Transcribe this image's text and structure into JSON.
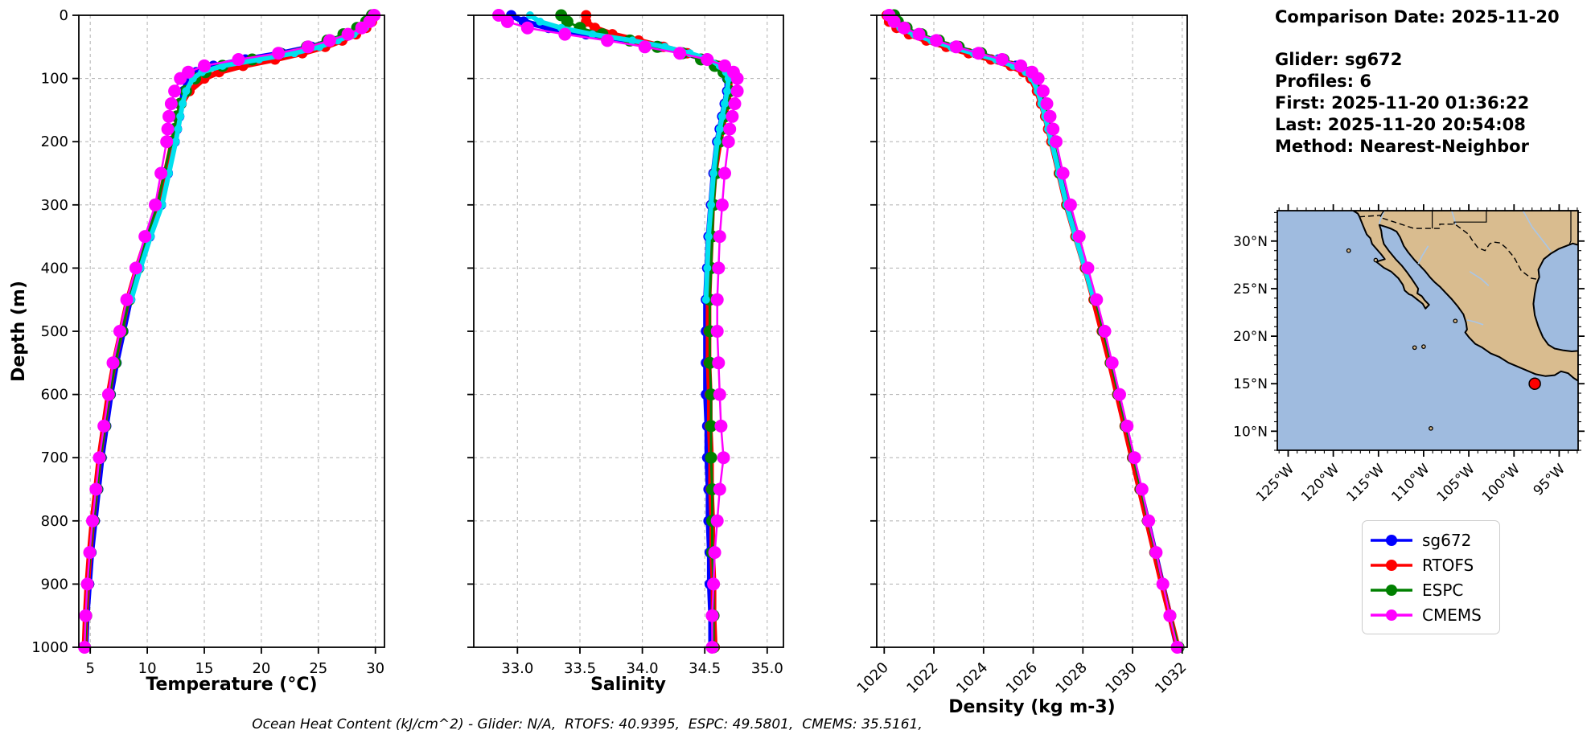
{
  "info_panel": {
    "comparison_date": "Comparison Date: 2025-11-20",
    "glider": "Glider: sg672",
    "profiles": "Profiles: 6",
    "first": "First: 2025-11-20 01:36:22",
    "last": "Last: 2025-11-20 20:54:08",
    "method": "Method: Nearest-Neighbor"
  },
  "footer": {
    "text": "Ocean Heat Content (kJ/cm^2) - Glider: N/A,  RTOFS: 40.9395,  ESPC: 49.5801,  CMEMS: 35.5161,"
  },
  "legend": {
    "position": "below-map-right",
    "entries": [
      {
        "label": "sg672",
        "color": "#0000ff"
      },
      {
        "label": "RTOFS",
        "color": "#ff0000"
      },
      {
        "label": "ESPC",
        "color": "#008000"
      },
      {
        "label": "CMEMS",
        "color": "#ff00ff"
      }
    ]
  },
  "map": {
    "ocean_color": "#9fbbdf",
    "land_color": "#d9bc8f",
    "river_color": "#a9c6e8",
    "lon_range": [
      -126.2,
      -92.9
    ],
    "lat_range": [
      8.0,
      33.2
    ],
    "lon_ticks": [
      {
        "value": -125,
        "label": "125°W"
      },
      {
        "value": -120,
        "label": "120°W"
      },
      {
        "value": -115,
        "label": "115°W"
      },
      {
        "value": -110,
        "label": "110°W"
      },
      {
        "value": -105,
        "label": "105°W"
      },
      {
        "value": -100,
        "label": "100°W"
      },
      {
        "value": -95,
        "label": "95°W"
      }
    ],
    "lat_ticks": [
      {
        "value": 30,
        "label": "30°N"
      },
      {
        "value": 25,
        "label": "25°N"
      },
      {
        "value": 20,
        "label": "20°N"
      },
      {
        "value": 15,
        "label": "15°N"
      },
      {
        "value": 10,
        "label": "10°N"
      }
    ],
    "marker": {
      "lon": -97.7,
      "lat": 15.0,
      "color": "#ff0000"
    }
  },
  "chart_data": {
    "type": "line",
    "ylabel": "Depth (m)",
    "ylim": [
      0,
      1000
    ],
    "grid": true,
    "depths": [
      0,
      10,
      20,
      30,
      40,
      50,
      60,
      70,
      80,
      90,
      100,
      120,
      140,
      160,
      180,
      200,
      250,
      300,
      350,
      400,
      450,
      500,
      550,
      600,
      650,
      700,
      750,
      800,
      850,
      900,
      950,
      1000
    ],
    "yticks": [
      {
        "value": 0,
        "label": "0"
      },
      {
        "value": 100,
        "label": "100"
      },
      {
        "value": 200,
        "label": "200"
      },
      {
        "value": 300,
        "label": "300"
      },
      {
        "value": 400,
        "label": "400"
      },
      {
        "value": 500,
        "label": "500"
      },
      {
        "value": 600,
        "label": "600"
      },
      {
        "value": 700,
        "label": "700"
      },
      {
        "value": 800,
        "label": "800"
      },
      {
        "value": 900,
        "label": "900"
      },
      {
        "value": 1000,
        "label": "1000"
      }
    ],
    "panels": [
      {
        "id": "temperature",
        "xlabel": "Temperature (°C)",
        "xlim": [
          4.0,
          30.8
        ],
        "rotate_xticklabels": false,
        "xticks": [
          {
            "value": 5,
            "label": "5"
          },
          {
            "value": 10,
            "label": "10"
          },
          {
            "value": 15,
            "label": "15"
          },
          {
            "value": 20,
            "label": "20"
          },
          {
            "value": 25,
            "label": "25"
          },
          {
            "value": 30,
            "label": "30"
          }
        ],
        "series": [
          {
            "name": "sg672",
            "color": "#0000ff",
            "line_width": 7,
            "marker_radius": 6.5,
            "values": [
              29.9,
              29.6,
              29.0,
              27.8,
              26.2,
              24.4,
              21.8,
              18.6,
              15.8,
              14.3,
              13.6,
              13.2,
              13.0,
              12.8,
              12.6,
              12.4,
              11.8,
              11.2,
              10.2,
              9.3,
              8.5,
              7.9,
              7.3,
              6.8,
              6.4,
              6.0,
              5.7,
              5.4,
              5.1,
              4.9,
              4.7,
              4.6
            ]
          },
          {
            "name": "RTOFS",
            "color": "#ff0000",
            "line_width": 7,
            "marker_radius": 6.5,
            "values": [
              29.9,
              29.7,
              29.2,
              28.3,
              27.1,
              25.6,
              23.6,
              21.2,
              18.4,
              16.3,
              15.0,
              13.7,
              13.0,
              12.7,
              12.5,
              12.2,
              11.6,
              11.0,
              10.0,
              9.1,
              8.3,
              7.7,
              7.1,
              6.6,
              6.2,
              5.8,
              5.5,
              5.2,
              4.95,
              4.75,
              4.6,
              4.5
            ]
          },
          {
            "name": "ESPC",
            "color": "#008000",
            "line_width": 3,
            "marker_radius": 7.5,
            "values": [
              29.7,
              29.2,
              28.4,
              27.2,
              25.8,
              24.0,
              21.6,
              19.2,
              16.6,
              15.1,
              14.2,
              13.4,
              12.9,
              12.6,
              12.4,
              12.1,
              11.5,
              10.9,
              10.0,
              9.2,
              8.4,
              7.8,
              7.2,
              6.7,
              6.3,
              5.9,
              5.6,
              5.3,
              5.0,
              4.8,
              4.65,
              4.55
            ]
          },
          {
            "name": "unlabeled-cyan",
            "color": "#00e0ee",
            "line_width": 6,
            "marker_radius": 5,
            "values": [
              29.9,
              29.6,
              29.1,
              28.1,
              26.7,
              25.1,
              22.9,
              19.8,
              16.6,
              14.8,
              14.0,
              13.4,
              13.1,
              12.9,
              12.7,
              12.5,
              11.9,
              11.3,
              10.3,
              9.4,
              8.6,
              null,
              null,
              null,
              null,
              null,
              null,
              null,
              null,
              null,
              null,
              null
            ]
          },
          {
            "name": "CMEMS",
            "color": "#ff00ff",
            "line_width": 2.5,
            "marker_radius": 8,
            "values": [
              29.9,
              29.5,
              28.8,
              27.6,
              26.0,
              24.1,
              21.5,
              18.0,
              15.0,
              13.6,
              12.9,
              12.4,
              12.1,
              11.9,
              11.8,
              11.7,
              11.2,
              10.7,
              9.8,
              9.0,
              8.2,
              7.6,
              7.0,
              6.6,
              6.2,
              5.8,
              5.5,
              5.2,
              4.95,
              4.75,
              4.6,
              4.5
            ]
          }
        ]
      },
      {
        "id": "salinity",
        "xlabel": "Salinity",
        "xlim": [
          32.65,
          35.13
        ],
        "rotate_xticklabels": false,
        "xticks": [
          {
            "value": 33.0,
            "label": "33.0"
          },
          {
            "value": 33.5,
            "label": "33.5"
          },
          {
            "value": 34.0,
            "label": "34.0"
          },
          {
            "value": 34.5,
            "label": "34.5"
          },
          {
            "value": 35.0,
            "label": "35.0"
          }
        ],
        "series": [
          {
            "name": "sg672",
            "color": "#0000ff",
            "line_width": 7,
            "marker_radius": 6.5,
            "values": [
              32.95,
              33.05,
              33.25,
              33.55,
              33.9,
              34.15,
              34.35,
              34.5,
              34.6,
              34.66,
              34.68,
              34.68,
              34.66,
              34.64,
              34.62,
              34.6,
              34.57,
              34.55,
              34.53,
              34.52,
              34.51,
              34.51,
              34.51,
              34.51,
              34.52,
              34.52,
              34.53,
              34.53,
              34.54,
              34.54,
              34.55,
              34.55
            ]
          },
          {
            "name": "RTOFS",
            "color": "#ff0000",
            "line_width": 7,
            "marker_radius": 6.5,
            "values": [
              33.55,
              33.55,
              33.62,
              33.76,
              33.97,
              34.17,
              34.36,
              34.5,
              34.61,
              34.67,
              34.7,
              34.7,
              34.68,
              34.66,
              34.64,
              34.62,
              34.58,
              34.56,
              34.55,
              34.54,
              34.53,
              34.53,
              34.53,
              34.54,
              34.54,
              34.55,
              34.55,
              34.56,
              34.56,
              34.57,
              34.57,
              34.58
            ]
          },
          {
            "name": "ESPC",
            "color": "#008000",
            "line_width": 3,
            "marker_radius": 7.5,
            "values": [
              33.35,
              33.4,
              33.5,
              33.68,
              33.9,
              34.12,
              34.32,
              34.47,
              34.58,
              34.65,
              34.69,
              34.7,
              34.68,
              34.66,
              34.64,
              34.62,
              34.59,
              34.57,
              34.56,
              34.55,
              34.54,
              34.54,
              34.54,
              34.55,
              34.55,
              34.55,
              34.56,
              34.56,
              34.56,
              34.57,
              34.57,
              34.57
            ]
          },
          {
            "name": "unlabeled-cyan",
            "color": "#00e0ee",
            "line_width": 6,
            "marker_radius": 5,
            "values": [
              33.1,
              33.18,
              33.35,
              33.6,
              33.92,
              34.18,
              34.38,
              34.54,
              34.62,
              34.67,
              34.69,
              34.68,
              34.66,
              34.64,
              34.62,
              34.6,
              34.57,
              34.55,
              34.53,
              34.52,
              34.51,
              null,
              null,
              null,
              null,
              null,
              null,
              null,
              null,
              null,
              null,
              null
            ]
          },
          {
            "name": "CMEMS",
            "color": "#ff00ff",
            "line_width": 2.5,
            "marker_radius": 8,
            "values": [
              32.85,
              32.92,
              33.08,
              33.38,
              33.72,
              34.02,
              34.3,
              34.52,
              34.66,
              34.73,
              34.76,
              34.76,
              34.74,
              34.72,
              34.7,
              34.69,
              34.66,
              34.64,
              34.62,
              34.61,
              34.6,
              34.6,
              34.61,
              34.62,
              34.63,
              34.65,
              34.62,
              34.6,
              34.58,
              34.57,
              34.56,
              34.56
            ]
          }
        ]
      },
      {
        "id": "density",
        "xlabel": "Density (kg m-3)",
        "xlim": [
          1019.7,
          1032.2
        ],
        "rotate_xticklabels": true,
        "xticks": [
          {
            "value": 1020,
            "label": "1020"
          },
          {
            "value": 1022,
            "label": "1022"
          },
          {
            "value": 1024,
            "label": "1024"
          },
          {
            "value": 1026,
            "label": "1026"
          },
          {
            "value": 1028,
            "label": "1028"
          },
          {
            "value": 1030,
            "label": "1030"
          },
          {
            "value": 1032,
            "label": "1032"
          }
        ],
        "series": [
          {
            "name": "sg672",
            "color": "#0000ff",
            "line_width": 7,
            "marker_radius": 6.5,
            "values": [
              1020.2,
              1020.35,
              1020.7,
              1021.3,
              1022.0,
              1022.8,
              1023.7,
              1024.6,
              1025.3,
              1025.75,
              1026.0,
              1026.2,
              1026.35,
              1026.5,
              1026.62,
              1026.75,
              1027.05,
              1027.35,
              1027.72,
              1028.1,
              1028.45,
              1028.78,
              1029.1,
              1029.4,
              1029.7,
              1030.0,
              1030.3,
              1030.6,
              1030.9,
              1031.2,
              1031.5,
              1031.8
            ]
          },
          {
            "name": "RTOFS",
            "color": "#ff0000",
            "line_width": 7,
            "marker_radius": 6.5,
            "values": [
              1020.1,
              1020.2,
              1020.5,
              1021.0,
              1021.7,
              1022.5,
              1023.4,
              1024.3,
              1025.1,
              1025.6,
              1025.9,
              1026.15,
              1026.32,
              1026.48,
              1026.6,
              1026.73,
              1027.03,
              1027.33,
              1027.7,
              1028.08,
              1028.43,
              1028.76,
              1029.08,
              1029.38,
              1029.68,
              1029.98,
              1030.28,
              1030.58,
              1030.88,
              1031.18,
              1031.5,
              1031.82
            ]
          },
          {
            "name": "ESPC",
            "color": "#008000",
            "line_width": 3,
            "marker_radius": 7.5,
            "values": [
              1020.4,
              1020.55,
              1020.9,
              1021.5,
              1022.2,
              1023.0,
              1023.9,
              1024.8,
              1025.5,
              1025.9,
              1026.1,
              1026.3,
              1026.45,
              1026.58,
              1026.7,
              1026.82,
              1027.1,
              1027.4,
              1027.77,
              1028.15,
              1028.5,
              1028.82,
              1029.13,
              1029.43,
              1029.73,
              1030.03,
              1030.33,
              1030.62,
              1030.92,
              1031.22,
              1031.52,
              1031.85
            ]
          },
          {
            "name": "unlabeled-cyan",
            "color": "#00e0ee",
            "line_width": 6,
            "marker_radius": 5,
            "values": [
              1020.15,
              1020.3,
              1020.65,
              1021.2,
              1021.9,
              1022.7,
              1023.6,
              1024.5,
              1025.2,
              1025.7,
              1025.95,
              1026.18,
              1026.33,
              1026.48,
              1026.6,
              1026.74,
              1027.04,
              1027.34,
              1027.7,
              1028.08,
              1028.44,
              null,
              null,
              null,
              null,
              null,
              null,
              null,
              null,
              null,
              null,
              null
            ]
          },
          {
            "name": "CMEMS",
            "color": "#ff00ff",
            "line_width": 2.5,
            "marker_radius": 8,
            "values": [
              1020.2,
              1020.4,
              1020.8,
              1021.4,
              1022.1,
              1022.9,
              1023.8,
              1024.75,
              1025.5,
              1025.95,
              1026.2,
              1026.4,
              1026.55,
              1026.68,
              1026.8,
              1026.92,
              1027.2,
              1027.5,
              1027.85,
              1028.2,
              1028.55,
              1028.88,
              1029.18,
              1029.48,
              1029.78,
              1030.08,
              1030.38,
              1030.65,
              1030.95,
              1031.22,
              1031.5,
              1031.8
            ]
          }
        ]
      }
    ]
  }
}
